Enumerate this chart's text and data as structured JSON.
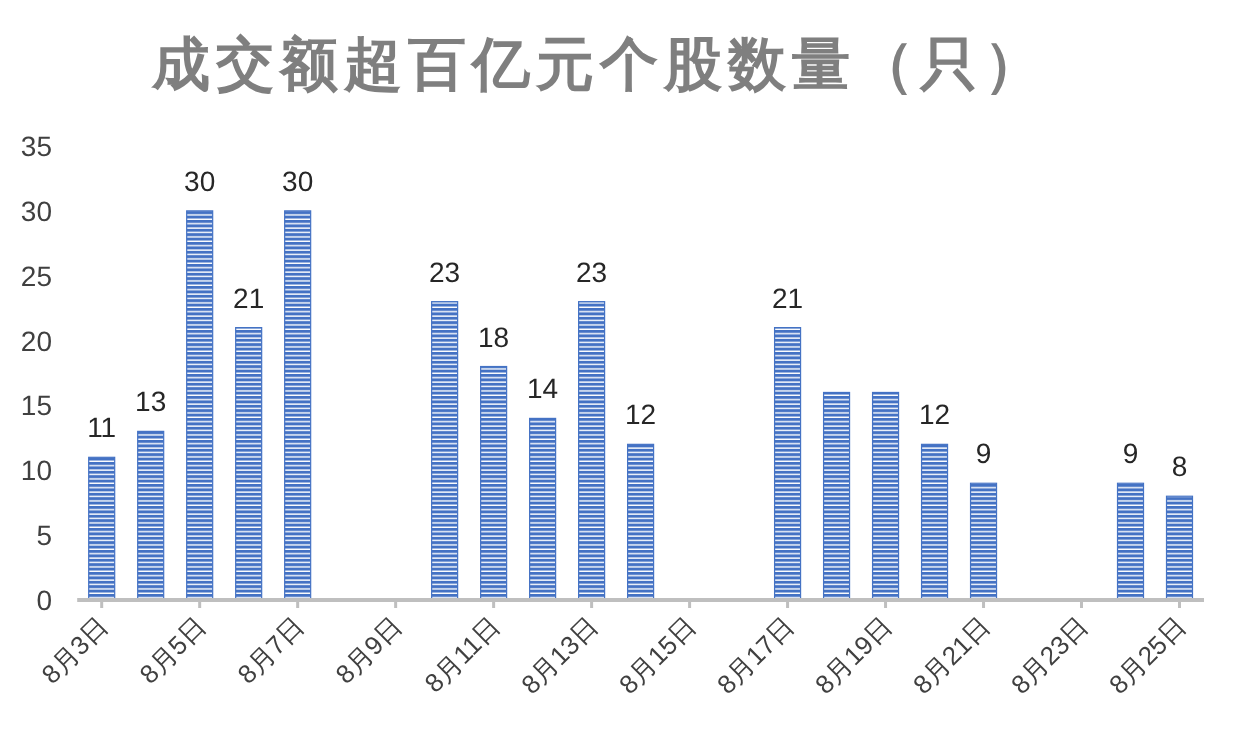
{
  "chart_data": {
    "type": "bar",
    "title": "成交额超百亿元个股数量（只）",
    "categories": [
      "8月3日",
      null,
      "8月5日",
      null,
      "8月7日",
      null,
      "8月9日",
      null,
      "8月11日",
      null,
      "8月13日",
      null,
      "8月15日",
      null,
      "8月17日",
      null,
      "8月19日",
      null,
      "8月21日",
      null,
      "8月23日",
      null,
      "8月25日"
    ],
    "values": [
      11,
      13,
      30,
      21,
      30,
      null,
      null,
      23,
      18,
      14,
      23,
      12,
      null,
      null,
      21,
      16,
      16,
      12,
      9,
      null,
      null,
      9,
      8
    ],
    "value_labels": [
      "11",
      "13",
      "30",
      "21",
      "30",
      null,
      null,
      "23",
      "18",
      "14",
      "23",
      "12",
      null,
      null,
      "21",
      null,
      null,
      "12",
      "9",
      null,
      null,
      "9",
      "8"
    ],
    "color": "#4472c4",
    "ylim": [
      0,
      35
    ],
    "yticks": [
      0,
      5,
      10,
      15,
      20,
      25,
      30,
      35
    ]
  }
}
